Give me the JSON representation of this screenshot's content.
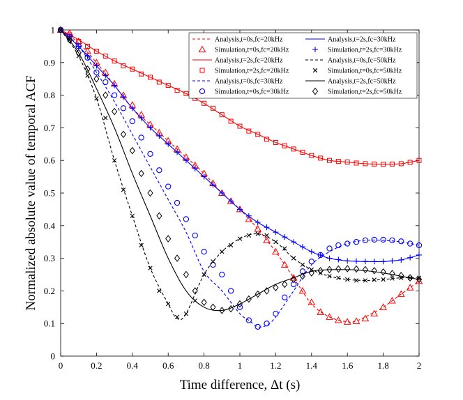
{
  "chart_data": {
    "type": "line",
    "title": "",
    "xlabel": "Time difference, Δt (s)",
    "ylabel": "Normalized absolute value of temporal ACF",
    "xlim": [
      0,
      2
    ],
    "ylim": [
      0,
      1
    ],
    "x_ticks": [
      "0",
      "0.2",
      "0.4",
      "0.6",
      "0.8",
      "1",
      "1.2",
      "1.4",
      "1.6",
      "1.8",
      "2"
    ],
    "y_ticks": [
      "0",
      "0.1",
      "0.2",
      "0.3",
      "0.4",
      "0.5",
      "0.6",
      "0.7",
      "0.8",
      "0.9",
      "1"
    ],
    "legend_position": "top-right",
    "grid": false,
    "colors": {
      "red": "#ff0000",
      "blue": "#0000ff",
      "black": "#000000"
    },
    "series": [
      {
        "name": "Analysis,t=0s,fc=20kHz",
        "kind": "analysis",
        "color": "#ff0000",
        "dash": "dashed",
        "x": [
          0,
          0.1,
          0.2,
          0.3,
          0.4,
          0.5,
          0.6,
          0.7,
          0.8,
          0.9,
          1.0,
          1.1,
          1.2,
          1.3,
          1.4,
          1.5,
          1.6,
          1.65,
          1.7,
          1.8,
          1.9,
          2.0
        ],
        "y": [
          1.0,
          0.96,
          0.9,
          0.83,
          0.76,
          0.71,
          0.66,
          0.61,
          0.56,
          0.5,
          0.45,
          0.39,
          0.32,
          0.24,
          0.16,
          0.12,
          0.105,
          0.108,
          0.12,
          0.15,
          0.19,
          0.23
        ]
      },
      {
        "name": "Simulation,t=0s,fc=20kHz",
        "kind": "simulation",
        "marker": "triangle",
        "color": "#ff0000",
        "x": [
          0,
          0.05,
          0.1,
          0.15,
          0.2,
          0.25,
          0.3,
          0.35,
          0.4,
          0.45,
          0.5,
          0.55,
          0.6,
          0.65,
          0.7,
          0.75,
          0.8,
          0.85,
          0.9,
          0.95,
          1.0,
          1.05,
          1.1,
          1.15,
          1.2,
          1.25,
          1.3,
          1.35,
          1.4,
          1.45,
          1.5,
          1.55,
          1.6,
          1.65,
          1.7,
          1.75,
          1.8,
          1.85,
          1.9,
          1.95,
          2.0
        ],
        "y": [
          1.0,
          0.99,
          0.965,
          0.935,
          0.9,
          0.87,
          0.835,
          0.8,
          0.77,
          0.74,
          0.71,
          0.685,
          0.66,
          0.635,
          0.61,
          0.585,
          0.56,
          0.53,
          0.5,
          0.475,
          0.45,
          0.42,
          0.39,
          0.355,
          0.32,
          0.28,
          0.24,
          0.2,
          0.165,
          0.135,
          0.12,
          0.11,
          0.105,
          0.107,
          0.115,
          0.13,
          0.15,
          0.17,
          0.19,
          0.21,
          0.23
        ]
      },
      {
        "name": "Analysis,t=2s,fc=20kHz",
        "kind": "analysis",
        "color": "#ff0000",
        "dash": "solid",
        "x": [
          0,
          0.1,
          0.2,
          0.3,
          0.4,
          0.5,
          0.6,
          0.7,
          0.8,
          0.9,
          1.0,
          1.1,
          1.2,
          1.3,
          1.4,
          1.5,
          1.6,
          1.7,
          1.8,
          1.9,
          2.0
        ],
        "y": [
          1.0,
          0.97,
          0.935,
          0.905,
          0.88,
          0.855,
          0.83,
          0.805,
          0.775,
          0.74,
          0.705,
          0.68,
          0.655,
          0.635,
          0.615,
          0.6,
          0.595,
          0.59,
          0.588,
          0.59,
          0.6
        ]
      },
      {
        "name": "Simulation,t=2s,fc=20kHz",
        "kind": "simulation",
        "marker": "square",
        "color": "#ff0000",
        "x": [
          0,
          0.05,
          0.1,
          0.15,
          0.2,
          0.25,
          0.3,
          0.35,
          0.4,
          0.45,
          0.5,
          0.55,
          0.6,
          0.65,
          0.7,
          0.75,
          0.8,
          0.85,
          0.9,
          0.95,
          1.0,
          1.05,
          1.1,
          1.15,
          1.2,
          1.25,
          1.3,
          1.35,
          1.4,
          1.45,
          1.5,
          1.55,
          1.6,
          1.65,
          1.7,
          1.75,
          1.8,
          1.85,
          1.9,
          1.95,
          2.0
        ],
        "y": [
          1.0,
          0.985,
          0.965,
          0.95,
          0.935,
          0.92,
          0.905,
          0.89,
          0.88,
          0.865,
          0.855,
          0.84,
          0.83,
          0.815,
          0.805,
          0.79,
          0.775,
          0.76,
          0.74,
          0.72,
          0.705,
          0.69,
          0.68,
          0.665,
          0.655,
          0.645,
          0.635,
          0.625,
          0.615,
          0.607,
          0.6,
          0.597,
          0.595,
          0.592,
          0.59,
          0.589,
          0.588,
          0.589,
          0.59,
          0.594,
          0.6
        ]
      },
      {
        "name": "Analysis,t=0s,fc=30kHz",
        "kind": "analysis",
        "color": "#0000ff",
        "dash": "dashed",
        "x": [
          0,
          0.1,
          0.2,
          0.3,
          0.4,
          0.5,
          0.6,
          0.7,
          0.8,
          0.9,
          1.0,
          1.05,
          1.1,
          1.15,
          1.2,
          1.3,
          1.4,
          1.5,
          1.6,
          1.7,
          1.8,
          1.9,
          2.0
        ],
        "y": [
          1.0,
          0.95,
          0.87,
          0.78,
          0.68,
          0.58,
          0.48,
          0.38,
          0.26,
          0.2,
          0.13,
          0.11,
          0.09,
          0.095,
          0.12,
          0.2,
          0.28,
          0.32,
          0.345,
          0.355,
          0.355,
          0.35,
          0.34
        ]
      },
      {
        "name": "Simulation,t=0s,fc=30kHz",
        "kind": "simulation",
        "marker": "circle",
        "color": "#0000ff",
        "x": [
          0,
          0.05,
          0.1,
          0.15,
          0.2,
          0.25,
          0.3,
          0.35,
          0.4,
          0.45,
          0.5,
          0.55,
          0.6,
          0.65,
          0.7,
          0.75,
          0.8,
          0.85,
          0.9,
          0.95,
          1.0,
          1.05,
          1.1,
          1.15,
          1.2,
          1.25,
          1.3,
          1.35,
          1.4,
          1.45,
          1.5,
          1.55,
          1.6,
          1.65,
          1.7,
          1.75,
          1.8,
          1.85,
          1.9,
          1.95,
          2.0
        ],
        "y": [
          1.0,
          0.98,
          0.95,
          0.915,
          0.87,
          0.84,
          0.8,
          0.76,
          0.72,
          0.67,
          0.62,
          0.57,
          0.52,
          0.47,
          0.42,
          0.37,
          0.32,
          0.28,
          0.25,
          0.2,
          0.15,
          0.11,
          0.09,
          0.1,
          0.13,
          0.18,
          0.22,
          0.26,
          0.29,
          0.31,
          0.33,
          0.34,
          0.345,
          0.35,
          0.355,
          0.357,
          0.357,
          0.355,
          0.352,
          0.345,
          0.34
        ]
      },
      {
        "name": "Analysis,t=2s,fc=30kHz",
        "kind": "analysis",
        "color": "#0000ff",
        "dash": "solid",
        "x": [
          0,
          0.1,
          0.2,
          0.3,
          0.4,
          0.5,
          0.6,
          0.7,
          0.8,
          0.9,
          1.0,
          1.1,
          1.2,
          1.3,
          1.4,
          1.5,
          1.6,
          1.7,
          1.8,
          1.9,
          2.0
        ],
        "y": [
          1.0,
          0.95,
          0.89,
          0.83,
          0.76,
          0.7,
          0.65,
          0.6,
          0.55,
          0.5,
          0.45,
          0.41,
          0.38,
          0.35,
          0.32,
          0.3,
          0.292,
          0.29,
          0.29,
          0.295,
          0.31
        ]
      },
      {
        "name": "Simulation,t=2s,fc=30kHz",
        "kind": "simulation",
        "marker": "plus",
        "color": "#0000ff",
        "x": [
          0,
          0.05,
          0.1,
          0.15,
          0.2,
          0.25,
          0.3,
          0.35,
          0.4,
          0.45,
          0.5,
          0.55,
          0.6,
          0.65,
          0.7,
          0.75,
          0.8,
          0.85,
          0.9,
          0.95,
          1.0,
          1.05,
          1.1,
          1.15,
          1.2,
          1.25,
          1.3,
          1.35,
          1.4,
          1.45,
          1.5,
          1.55,
          1.6,
          1.65,
          1.7,
          1.75,
          1.8,
          1.85,
          1.9,
          1.95,
          2.0
        ],
        "y": [
          1.0,
          0.98,
          0.95,
          0.92,
          0.89,
          0.86,
          0.83,
          0.795,
          0.76,
          0.73,
          0.7,
          0.675,
          0.65,
          0.625,
          0.6,
          0.575,
          0.55,
          0.525,
          0.5,
          0.475,
          0.45,
          0.43,
          0.41,
          0.395,
          0.38,
          0.365,
          0.35,
          0.335,
          0.32,
          0.31,
          0.3,
          0.296,
          0.292,
          0.291,
          0.29,
          0.29,
          0.29,
          0.292,
          0.295,
          0.302,
          0.31
        ]
      },
      {
        "name": "Analysis,t=0s,fc=50kHz",
        "kind": "analysis",
        "color": "#000000",
        "dash": "dashed",
        "x": [
          0,
          0.1,
          0.2,
          0.3,
          0.4,
          0.5,
          0.6,
          0.65,
          0.7,
          0.8,
          0.9,
          1.0,
          1.1,
          1.2,
          1.3,
          1.4,
          1.5,
          1.6,
          1.7,
          1.8,
          1.9,
          2.0
        ],
        "y": [
          1.0,
          0.92,
          0.79,
          0.6,
          0.43,
          0.27,
          0.16,
          0.115,
          0.13,
          0.25,
          0.32,
          0.36,
          0.375,
          0.35,
          0.3,
          0.265,
          0.245,
          0.235,
          0.232,
          0.235,
          0.24,
          0.24
        ]
      },
      {
        "name": "Simulation,t=0s,fc=50kHz",
        "kind": "simulation",
        "marker": "x",
        "color": "#000000",
        "x": [
          0,
          0.05,
          0.1,
          0.15,
          0.2,
          0.25,
          0.3,
          0.35,
          0.4,
          0.45,
          0.5,
          0.55,
          0.6,
          0.65,
          0.7,
          0.75,
          0.8,
          0.85,
          0.9,
          0.95,
          1.0,
          1.05,
          1.1,
          1.15,
          1.2,
          1.25,
          1.3,
          1.35,
          1.4,
          1.45,
          1.5,
          1.55,
          1.6,
          1.65,
          1.7,
          1.75,
          1.8,
          1.85,
          1.9,
          1.95,
          2.0
        ],
        "y": [
          1.0,
          0.97,
          0.92,
          0.86,
          0.79,
          0.73,
          0.6,
          0.51,
          0.43,
          0.34,
          0.27,
          0.2,
          0.16,
          0.12,
          0.13,
          0.17,
          0.25,
          0.29,
          0.32,
          0.34,
          0.36,
          0.37,
          0.375,
          0.37,
          0.35,
          0.33,
          0.3,
          0.28,
          0.265,
          0.255,
          0.245,
          0.24,
          0.235,
          0.232,
          0.232,
          0.234,
          0.235,
          0.238,
          0.24,
          0.24,
          0.24
        ]
      },
      {
        "name": "Analysis,t=2s,fc=50kHz",
        "kind": "analysis",
        "color": "#000000",
        "dash": "solid",
        "x": [
          0,
          0.1,
          0.2,
          0.3,
          0.4,
          0.5,
          0.6,
          0.7,
          0.8,
          0.9,
          1.0,
          1.1,
          1.2,
          1.3,
          1.4,
          1.5,
          1.6,
          1.7,
          1.8,
          1.9,
          2.0
        ],
        "y": [
          1.0,
          0.93,
          0.82,
          0.7,
          0.56,
          0.43,
          0.3,
          0.2,
          0.15,
          0.14,
          0.16,
          0.19,
          0.22,
          0.24,
          0.26,
          0.265,
          0.265,
          0.262,
          0.255,
          0.245,
          0.235
        ]
      },
      {
        "name": "Simulation,t=2s,fc=50kHz",
        "kind": "simulation",
        "marker": "diamond",
        "color": "#000000",
        "x": [
          0,
          0.05,
          0.1,
          0.15,
          0.2,
          0.25,
          0.3,
          0.35,
          0.4,
          0.45,
          0.5,
          0.55,
          0.6,
          0.65,
          0.7,
          0.75,
          0.8,
          0.85,
          0.9,
          0.95,
          1.0,
          1.05,
          1.1,
          1.15,
          1.2,
          1.25,
          1.3,
          1.35,
          1.4,
          1.45,
          1.5,
          1.55,
          1.6,
          1.65,
          1.7,
          1.75,
          1.8,
          1.85,
          1.9,
          1.95,
          2.0
        ],
        "y": [
          1.0,
          0.97,
          0.93,
          0.88,
          0.85,
          0.8,
          0.75,
          0.68,
          0.63,
          0.56,
          0.5,
          0.43,
          0.36,
          0.3,
          0.25,
          0.2,
          0.165,
          0.15,
          0.14,
          0.145,
          0.16,
          0.175,
          0.19,
          0.2,
          0.21,
          0.22,
          0.235,
          0.245,
          0.255,
          0.262,
          0.265,
          0.267,
          0.268,
          0.267,
          0.265,
          0.262,
          0.258,
          0.253,
          0.247,
          0.24,
          0.235
        ]
      }
    ]
  }
}
